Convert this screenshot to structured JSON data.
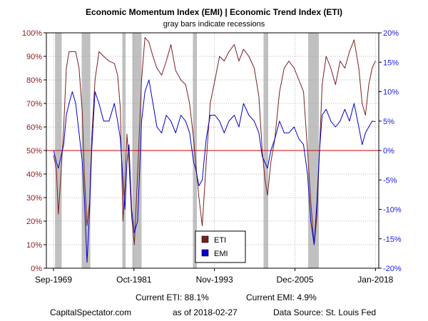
{
  "chart_data": {
    "type": "line",
    "title": "Economic Momentum Index (EMI) | Economic Trend Index (ETI)",
    "subtitle": "gray bars indicate recessions",
    "x_range": [
      1968.6,
      2018.5
    ],
    "x_tick_values": [
      1969.67,
      1981.75,
      1993.83,
      2005.92,
      2018.0
    ],
    "x_tick_labels": [
      "Sep-1969",
      "Oct-1981",
      "Nov-1993",
      "Dec-2005",
      "Jan-2018"
    ],
    "y_left": {
      "range": [
        0,
        100
      ],
      "ticks": [
        0,
        10,
        20,
        30,
        40,
        50,
        60,
        70,
        80,
        90,
        100
      ],
      "tick_labels": [
        "0%",
        "10%",
        "20%",
        "30%",
        "40%",
        "50%",
        "60%",
        "70%",
        "80%",
        "90%",
        "100%"
      ],
      "color": "#8b1a1a"
    },
    "y_right": {
      "range": [
        -20,
        20
      ],
      "ticks": [
        -20,
        -15,
        -10,
        -5,
        0,
        5,
        10,
        15,
        20
      ],
      "tick_labels": [
        "-20%",
        "-15%",
        "-10%",
        "-5%",
        "0%",
        "5%",
        "10%",
        "15%",
        "20%"
      ],
      "color": "#1a1ae6"
    },
    "grid": true,
    "reference_line": {
      "value": 50,
      "axis": "left",
      "color": "#cc0000"
    },
    "recessions": [
      [
        1969.9,
        1970.9
      ],
      [
        1973.9,
        1975.2
      ],
      [
        1980.0,
        1980.5
      ],
      [
        1981.5,
        1982.9
      ],
      [
        1990.6,
        1991.2
      ],
      [
        2001.2,
        2001.9
      ],
      [
        2007.9,
        2009.5
      ]
    ],
    "recession_color": "#c0c0c0",
    "legend": {
      "position": "bottom-center"
    },
    "series": [
      {
        "name": "ETI",
        "axis": "left",
        "color": "#7a1f1f",
        "x": [
          1969.7,
          1970.1,
          1970.4,
          1970.8,
          1971.2,
          1971.6,
          1972.0,
          1972.5,
          1973.0,
          1973.5,
          1974.0,
          1974.3,
          1974.7,
          1975.1,
          1975.4,
          1975.9,
          1976.5,
          1977.2,
          1978.0,
          1978.8,
          1979.3,
          1979.7,
          1980.1,
          1980.4,
          1980.7,
          1981.0,
          1981.4,
          1981.8,
          1982.3,
          1982.9,
          1983.4,
          1984.0,
          1984.6,
          1985.2,
          1985.9,
          1986.6,
          1987.3,
          1988.0,
          1988.8,
          1989.5,
          1990.1,
          1990.7,
          1991.0,
          1991.5,
          1992.0,
          1992.6,
          1993.2,
          1993.9,
          1994.6,
          1995.3,
          1996.0,
          1996.8,
          1997.5,
          1998.2,
          1999.0,
          1999.8,
          2000.5,
          2001.0,
          2001.4,
          2001.8,
          2002.3,
          2002.9,
          2003.6,
          2004.3,
          2005.0,
          2005.8,
          2006.5,
          2007.2,
          2007.8,
          2008.3,
          2008.8,
          2009.2,
          2009.6,
          2010.0,
          2010.6,
          2011.3,
          2012.0,
          2012.7,
          2013.4,
          2014.1,
          2014.8,
          2015.5,
          2016.0,
          2016.5,
          2017.0,
          2017.5,
          2018.0
        ],
        "y": [
          48,
          42,
          23,
          40,
          60,
          85,
          92,
          92,
          92,
          85,
          66,
          40,
          18,
          28,
          55,
          80,
          92,
          90,
          88,
          87,
          82,
          68,
          20,
          35,
          57,
          45,
          22,
          10,
          40,
          80,
          98,
          96,
          90,
          85,
          82,
          88,
          95,
          84,
          80,
          78,
          70,
          55,
          45,
          30,
          18,
          45,
          70,
          80,
          90,
          88,
          92,
          95,
          88,
          93,
          90,
          85,
          73,
          50,
          38,
          31,
          45,
          55,
          75,
          85,
          88,
          85,
          80,
          75,
          50,
          28,
          10,
          22,
          50,
          78,
          90,
          85,
          78,
          88,
          85,
          92,
          97,
          85,
          70,
          65,
          78,
          85,
          88.1
        ]
      },
      {
        "name": "EMI",
        "axis": "right",
        "color": "#0000cc",
        "x": [
          1969.7,
          1970.1,
          1970.4,
          1970.8,
          1971.2,
          1971.6,
          1972.0,
          1972.5,
          1973.0,
          1973.5,
          1974.0,
          1974.3,
          1974.7,
          1975.1,
          1975.4,
          1975.9,
          1976.5,
          1977.2,
          1978.0,
          1978.8,
          1979.3,
          1979.7,
          1980.1,
          1980.4,
          1980.7,
          1981.0,
          1981.4,
          1981.8,
          1982.3,
          1982.9,
          1983.4,
          1984.0,
          1984.6,
          1985.2,
          1985.9,
          1986.6,
          1987.3,
          1988.0,
          1988.8,
          1989.5,
          1990.1,
          1990.7,
          1991.0,
          1991.5,
          1992.0,
          1992.6,
          1993.2,
          1993.9,
          1994.6,
          1995.3,
          1996.0,
          1996.8,
          1997.5,
          1998.2,
          1999.0,
          1999.8,
          2000.5,
          2001.0,
          2001.4,
          2001.8,
          2002.3,
          2002.9,
          2003.6,
          2004.3,
          2005.0,
          2005.8,
          2006.5,
          2007.2,
          2007.8,
          2008.3,
          2008.8,
          2009.2,
          2009.6,
          2010.0,
          2010.6,
          2011.3,
          2012.0,
          2012.7,
          2013.4,
          2014.1,
          2014.8,
          2015.5,
          2016.0,
          2016.5,
          2017.0,
          2017.5,
          2018.0
        ],
        "y": [
          0,
          -2,
          -3,
          -1,
          1,
          6,
          8,
          10,
          8,
          3,
          -2,
          -8,
          -19,
          -10,
          0,
          10,
          8,
          5,
          5,
          8,
          5,
          2,
          -5,
          -10,
          -2,
          1,
          -10,
          -14,
          -12,
          5,
          10,
          12,
          8,
          4,
          3,
          6,
          5,
          3,
          6,
          5,
          3,
          -2,
          -3,
          -6,
          -5,
          2,
          6,
          6,
          5,
          3,
          5,
          6,
          4,
          8,
          6,
          5,
          3,
          -1,
          -2,
          -3,
          0,
          2,
          5,
          3,
          3,
          4,
          2,
          1,
          -4,
          -12,
          -16,
          -9,
          0,
          6,
          7,
          5,
          4,
          5,
          7,
          5,
          8,
          4,
          1,
          3,
          4,
          5,
          4.9
        ]
      }
    ]
  },
  "footer": {
    "current_eti": "Current ETI:  88.1%",
    "current_emi": "Current EMI:  4.9%",
    "site": "CapitalSpectator.com",
    "as_of": "as of 2018-02-27",
    "source": "Data Source: St. Louis Fed"
  }
}
